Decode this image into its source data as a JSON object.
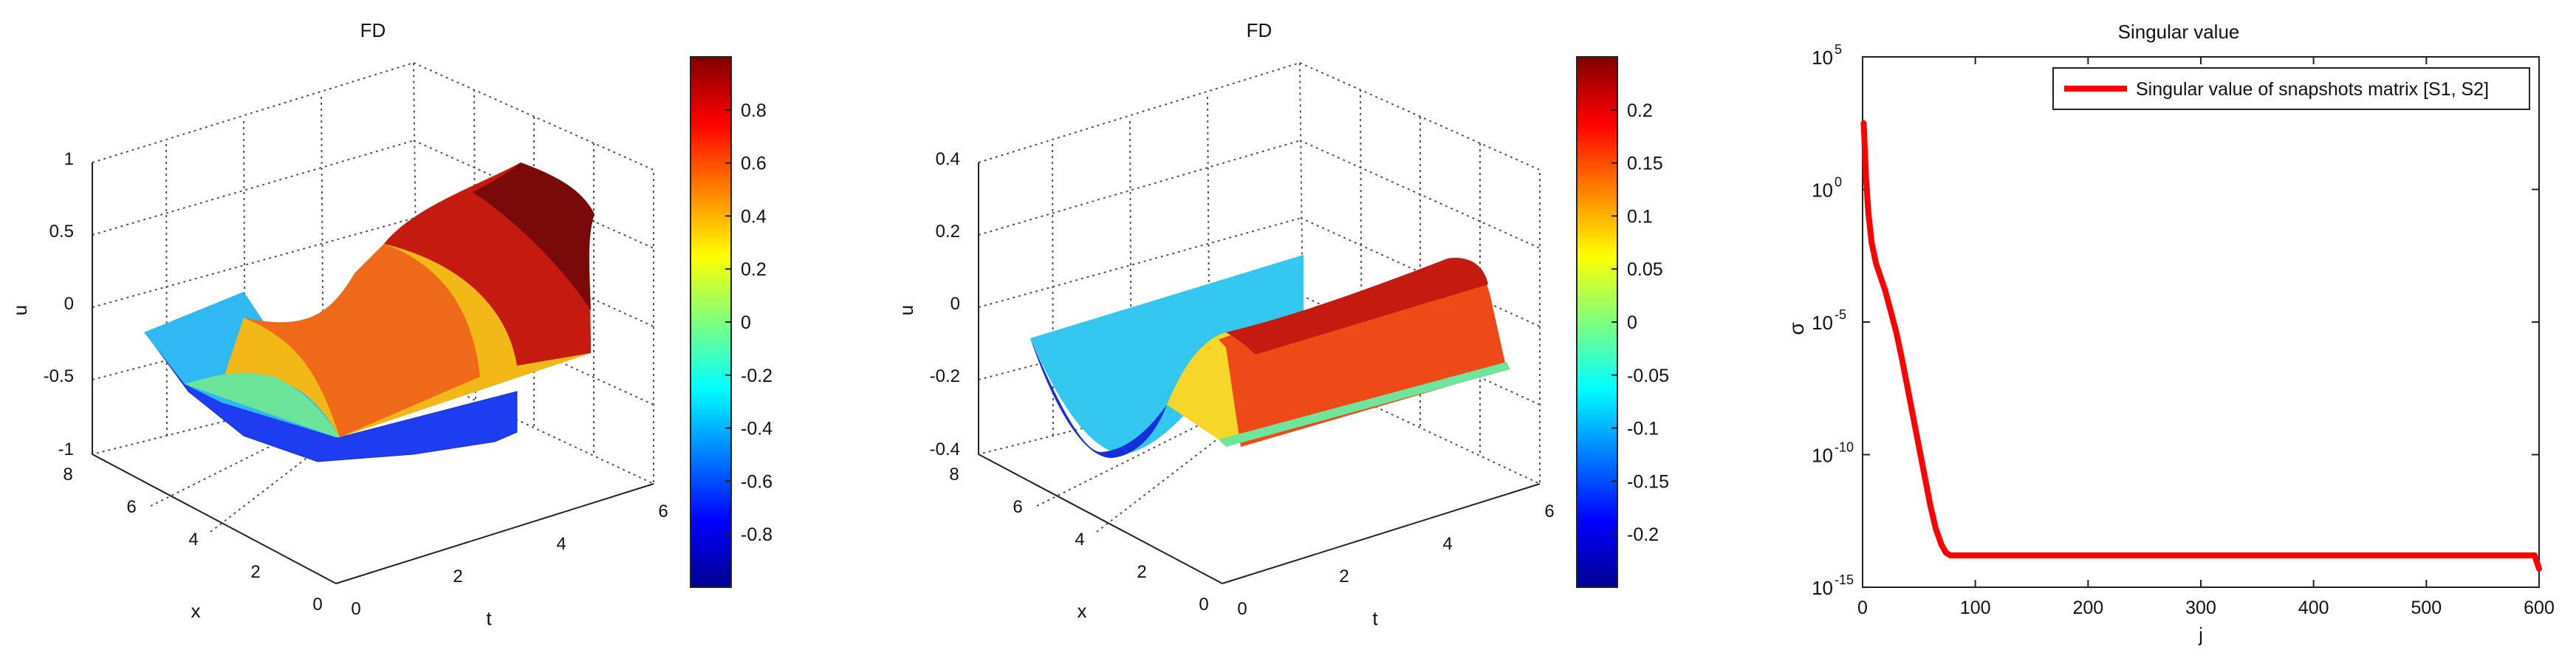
{
  "chart_data": [
    {
      "type": "surface",
      "title": "FD",
      "xlabel": "t",
      "ylabel": "x",
      "zlabel": "u",
      "t_ticks": [
        "0",
        "2",
        "4",
        "6"
      ],
      "x_ticks": [
        "0",
        "2",
        "4",
        "6",
        "8"
      ],
      "z_ticks": [
        "-1",
        "-0.5",
        "0",
        "0.5",
        "1"
      ],
      "zlim": [
        -1,
        1
      ],
      "surface": {
        "t_range": [
          0,
          5.5
        ],
        "x_range": [
          0,
          6.28
        ],
        "description_values": {
          "u_at_t0_min": -0.8,
          "u_at_t5_5_max": 0.99
        }
      },
      "colorbar": {
        "range": [
          -1,
          1
        ],
        "ticks": [
          "0.8",
          "0.6",
          "0.4",
          "0.2",
          "0",
          "-0.2",
          "-0.4",
          "-0.6",
          "-0.8"
        ],
        "tick_values": [
          0.8,
          0.6,
          0.4,
          0.2,
          0,
          -0.2,
          -0.4,
          -0.6,
          -0.8
        ]
      }
    },
    {
      "type": "surface",
      "title": "FD",
      "xlabel": "t",
      "ylabel": "x",
      "zlabel": "u",
      "t_ticks": [
        "0",
        "2",
        "4",
        "6"
      ],
      "x_ticks": [
        "0",
        "2",
        "4",
        "6",
        "8"
      ],
      "z_ticks": [
        "-0.4",
        "-0.2",
        "0",
        "0.2",
        "0.4"
      ],
      "zlim": [
        -0.4,
        0.4
      ],
      "surface": {
        "t_range": [
          0,
          5.5
        ],
        "x_range": [
          0,
          6.28
        ],
        "amplitude": 0.25
      },
      "colorbar": {
        "range": [
          -0.25,
          0.25
        ],
        "ticks": [
          "0.2",
          "0.15",
          "0.1",
          "0.05",
          "0",
          "-0.05",
          "-0.1",
          "-0.15",
          "-0.2"
        ],
        "tick_values": [
          0.2,
          0.15,
          0.1,
          0.05,
          0,
          -0.05,
          -0.1,
          -0.15,
          -0.2
        ]
      }
    },
    {
      "type": "line",
      "title": "Singular value",
      "xlabel": "j",
      "ylabel": "σ",
      "yscale": "log",
      "xlim": [
        0,
        600
      ],
      "ylim_exp": [
        -15,
        5
      ],
      "x_ticks": [
        "0",
        "100",
        "200",
        "300",
        "400",
        "500",
        "600"
      ],
      "y_ticks": [
        {
          "base": "10",
          "exp": "5",
          "e": 5
        },
        {
          "base": "10",
          "exp": "0",
          "e": 0
        },
        {
          "base": "10",
          "exp": "-5",
          "e": -5
        },
        {
          "base": "10",
          "exp": "-10",
          "e": -10
        },
        {
          "base": "10",
          "exp": "-15",
          "e": -15
        }
      ],
      "legend": "top-right",
      "grid": false,
      "series": [
        {
          "name": "Singular value of snapshots matrix [S1, S2]",
          "color": "#ff0000",
          "x": [
            1,
            2,
            3,
            5,
            8,
            12,
            16,
            20,
            25,
            30,
            35,
            40,
            45,
            50,
            55,
            60,
            65,
            70,
            74,
            78,
            100,
            200,
            300,
            400,
            500,
            590,
            596,
            600
          ],
          "log10_y": [
            2.5,
            1.5,
            0.5,
            -0.8,
            -2.0,
            -2.8,
            -3.3,
            -3.8,
            -4.6,
            -5.4,
            -6.4,
            -7.5,
            -8.6,
            -9.7,
            -10.8,
            -11.9,
            -12.8,
            -13.4,
            -13.7,
            -13.8,
            -13.8,
            -13.8,
            -13.8,
            -13.8,
            -13.8,
            -13.8,
            -13.8,
            -14.3
          ]
        }
      ]
    }
  ]
}
